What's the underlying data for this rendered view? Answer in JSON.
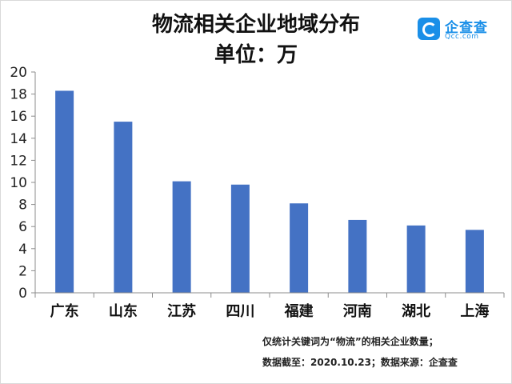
{
  "title": "物流相关企业地域分布",
  "subtitle": "单位：万",
  "logo": {
    "name": "企查查",
    "domain": "Qcc.com",
    "icon": "magnifier-logo-icon",
    "color": "#1a8fe8"
  },
  "chart_data": {
    "type": "bar",
    "categories": [
      "广东",
      "山东",
      "江苏",
      "四川",
      "福建",
      "河南",
      "湖北",
      "上海"
    ],
    "values": [
      18.3,
      15.5,
      10.1,
      9.8,
      8.1,
      6.6,
      6.1,
      5.7
    ],
    "ylim": [
      0,
      20
    ],
    "yticks": [
      "0",
      "2",
      "4",
      "6",
      "8",
      "10",
      "12",
      "14",
      "16",
      "18",
      "20"
    ],
    "bar_color": "#4472c4",
    "grid": false,
    "legend": "none"
  },
  "notes": {
    "line1": "仅统计关键词为“物流”的相关企业数量；",
    "line2": "数据截至：2020.10.23；数据来源：企查查"
  }
}
